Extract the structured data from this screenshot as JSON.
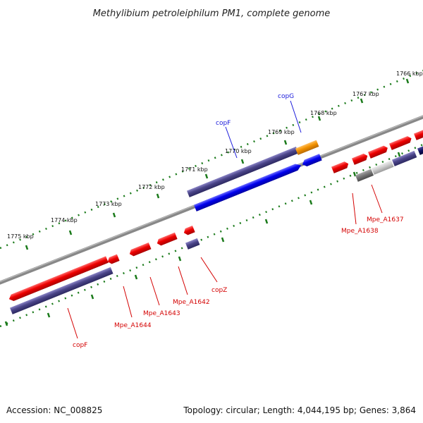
{
  "title": "Methylibium petroleiphilum PM1, complete genome",
  "footer": {
    "accession": "Accession: NC_008825",
    "summary": "Topology: circular; Length: 4,044,195 bp; Genes: 3,864"
  },
  "tick_labels": [
    "1766 kbp",
    "1767 kbp",
    "1768 kbp",
    "1769 kbp",
    "1770 kbp",
    "1771 kbp",
    "1772 kbp",
    "1773 kbp",
    "1774 kbp",
    "1775 kbp"
  ],
  "gene_labels": {
    "copG": "copG",
    "copF_top": "copF",
    "Mpe_A1637": "Mpe_A1637",
    "Mpe_A1638": "Mpe_A1638",
    "copZ": "copZ",
    "Mpe_A1642": "Mpe_A1642",
    "Mpe_A1643": "Mpe_A1643",
    "Mpe_A1644": "Mpe_A1644",
    "copF_bottom": "copF"
  },
  "colors": {
    "forward_cds": "#ee0000",
    "reverse_cds": "#0000ee",
    "forward_gene": "#4a4488",
    "orange_gene": "#f39200",
    "gray_gene": "#777777",
    "light_gray_gene": "#cccccc",
    "backbone": "#888888",
    "ticks": "#1a7a1a"
  }
}
